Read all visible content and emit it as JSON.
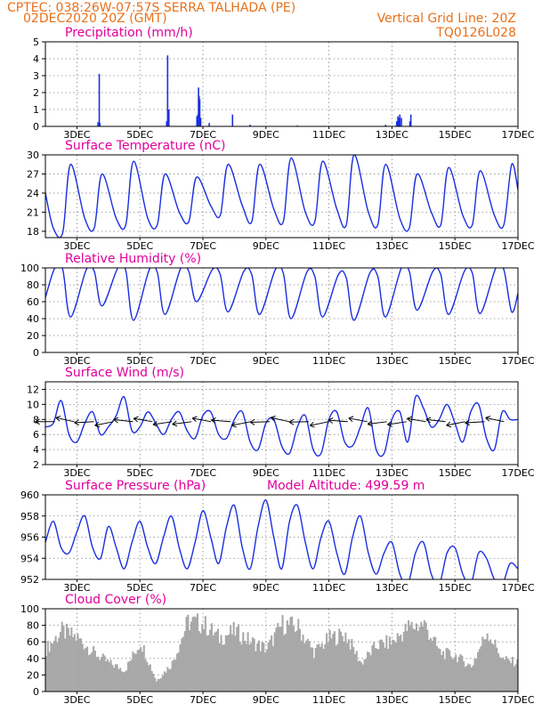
{
  "header": {
    "line1_left": "CPTEC:   038:26W-07:57S   SERRA TALHADA (PE)",
    "line2_left": "02DEC2020 20Z (GMT)",
    "line2_right": "Vertical Grid Line: 20Z",
    "line3_right": "TQ0126L028"
  },
  "colors": {
    "header": "#e8701a",
    "title": "#e0009a",
    "series": "#1a2fe0",
    "cloud": "#a8a8a8"
  },
  "chart_data": [
    {
      "id": "precipitation",
      "type": "bar",
      "title": "Precipitation (mm/h)",
      "xlabel": "",
      "ylabel": "",
      "ylim": [
        0,
        5
      ],
      "yticks": [
        0,
        1,
        2,
        3,
        4,
        5
      ],
      "xlim": [
        0,
        15
      ],
      "grid": true,
      "x_ticks": [
        {
          "x": 1,
          "label": "3DEC"
        },
        {
          "x": 3,
          "label": "5DEC"
        },
        {
          "x": 5,
          "label": "7DEC"
        },
        {
          "x": 7,
          "label": "9DEC"
        },
        {
          "x": 9,
          "label": "11DEC"
        },
        {
          "x": 11,
          "label": "13DEC"
        },
        {
          "x": 13,
          "label": "15DEC"
        },
        {
          "x": 15,
          "label": "17DEC"
        }
      ],
      "x": [
        1.67,
        1.71,
        1.73,
        3.85,
        3.88,
        3.92,
        4.81,
        4.84,
        4.86,
        4.88,
        4.9,
        4.93,
        5.2,
        5.94,
        6.5,
        8.0,
        10.8,
        11.15,
        11.19,
        11.22,
        11.25,
        11.3,
        11.57,
        11.6
      ],
      "values": [
        0.25,
        3.1,
        0.2,
        0.3,
        4.2,
        1.0,
        0.6,
        0.7,
        2.3,
        1.8,
        1.6,
        0.5,
        0.2,
        0.7,
        0.1,
        0.05,
        0.1,
        0.3,
        0.6,
        0.5,
        0.7,
        0.5,
        0.3,
        0.7
      ]
    },
    {
      "id": "surface_temperature",
      "type": "line",
      "title": "Surface Temperature (nC)",
      "xlabel": "",
      "ylabel": "",
      "ylim": [
        17,
        30
      ],
      "yticks": [
        18,
        21,
        24,
        27,
        30
      ],
      "xlim": [
        0,
        15
      ],
      "grid": true,
      "x_ticks": [
        {
          "x": 1,
          "label": "3DEC"
        },
        {
          "x": 3,
          "label": "5DEC"
        },
        {
          "x": 5,
          "label": "7DEC"
        },
        {
          "x": 7,
          "label": "9DEC"
        },
        {
          "x": 9,
          "label": "11DEC"
        },
        {
          "x": 11,
          "label": "13DEC"
        },
        {
          "x": 13,
          "label": "15DEC"
        },
        {
          "x": 15,
          "label": "17DEC"
        }
      ],
      "x": [
        0,
        0.25,
        0.55,
        0.8,
        1.25,
        1.55,
        1.8,
        2.25,
        2.55,
        2.8,
        3.25,
        3.55,
        3.8,
        4.25,
        4.55,
        4.8,
        5.25,
        5.55,
        5.8,
        6.25,
        6.55,
        6.8,
        7.25,
        7.55,
        7.8,
        8.25,
        8.55,
        8.8,
        9.25,
        9.55,
        9.8,
        10.25,
        10.55,
        10.8,
        11.25,
        11.55,
        11.8,
        12.25,
        12.55,
        12.8,
        13.25,
        13.55,
        13.8,
        14.25,
        14.55,
        14.8,
        15
      ],
      "values": [
        24,
        18.5,
        17.8,
        28.5,
        20,
        18.5,
        27,
        20,
        19,
        29,
        20,
        19,
        27,
        21,
        19.5,
        26.5,
        22,
        20.5,
        28.5,
        22,
        19.5,
        28.5,
        21.5,
        19.5,
        29.5,
        21,
        19.5,
        29,
        21.5,
        19,
        30,
        21,
        19,
        28.5,
        20,
        18.5,
        27,
        21,
        19,
        28,
        20.5,
        19,
        27.5,
        20.5,
        19,
        28.5,
        24.5
      ]
    },
    {
      "id": "relative_humidity",
      "type": "line",
      "title": "Relative Humidity (%)",
      "xlabel": "",
      "ylabel": "",
      "ylim": [
        0,
        100
      ],
      "yticks": [
        0,
        20,
        40,
        60,
        80,
        100
      ],
      "xlim": [
        0,
        15
      ],
      "grid": true,
      "x_ticks": [
        {
          "x": 1,
          "label": "3DEC"
        },
        {
          "x": 3,
          "label": "5DEC"
        },
        {
          "x": 5,
          "label": "7DEC"
        },
        {
          "x": 7,
          "label": "9DEC"
        },
        {
          "x": 9,
          "label": "11DEC"
        },
        {
          "x": 11,
          "label": "13DEC"
        },
        {
          "x": 13,
          "label": "15DEC"
        },
        {
          "x": 15,
          "label": "17DEC"
        }
      ],
      "x": [
        0,
        0.3,
        0.55,
        0.8,
        1.3,
        1.55,
        1.8,
        2.3,
        2.55,
        2.8,
        3.3,
        3.55,
        3.8,
        4.3,
        4.55,
        4.8,
        5.3,
        5.55,
        5.8,
        6.3,
        6.55,
        6.8,
        7.3,
        7.55,
        7.8,
        8.3,
        8.55,
        8.8,
        9.3,
        9.55,
        9.8,
        10.3,
        10.55,
        10.8,
        11.3,
        11.55,
        11.8,
        12.3,
        12.55,
        12.8,
        13.3,
        13.55,
        13.8,
        14.3,
        14.55,
        14.8,
        15
      ],
      "values": [
        65,
        100,
        98,
        42,
        98,
        96,
        55,
        100,
        97,
        38,
        98,
        95,
        45,
        100,
        96,
        60,
        98,
        92,
        48,
        96,
        92,
        45,
        98,
        94,
        40,
        95,
        90,
        42,
        92,
        88,
        38,
        94,
        90,
        42,
        100,
        96,
        50,
        96,
        92,
        45,
        96,
        94,
        46,
        100,
        98,
        48,
        70
      ]
    },
    {
      "id": "surface_wind",
      "type": "line",
      "title": "Surface Wind (m/s)",
      "xlabel": "",
      "ylabel": "",
      "ylim": [
        2,
        13
      ],
      "yticks": [
        2,
        4,
        6,
        8,
        10,
        12
      ],
      "xlim": [
        0,
        15
      ],
      "grid": true,
      "x_ticks": [
        {
          "x": 1,
          "label": "3DEC"
        },
        {
          "x": 3,
          "label": "5DEC"
        },
        {
          "x": 5,
          "label": "7DEC"
        },
        {
          "x": 7,
          "label": "9DEC"
        },
        {
          "x": 9,
          "label": "11DEC"
        },
        {
          "x": 11,
          "label": "13DEC"
        },
        {
          "x": 13,
          "label": "15DEC"
        },
        {
          "x": 15,
          "label": "17DEC"
        }
      ],
      "x": [
        0,
        0.25,
        0.5,
        0.75,
        1.0,
        1.25,
        1.5,
        1.75,
        2.0,
        2.25,
        2.5,
        2.75,
        3.0,
        3.25,
        3.5,
        3.75,
        4.0,
        4.25,
        4.5,
        4.75,
        5.0,
        5.25,
        5.5,
        5.75,
        6.0,
        6.25,
        6.5,
        6.75,
        7.0,
        7.25,
        7.5,
        7.75,
        8.0,
        8.25,
        8.5,
        8.75,
        9.0,
        9.25,
        9.5,
        9.75,
        10.0,
        10.25,
        10.5,
        10.75,
        11.0,
        11.25,
        11.5,
        11.75,
        12.0,
        12.25,
        12.5,
        12.75,
        13.0,
        13.25,
        13.5,
        13.75,
        14.0,
        14.25,
        14.5,
        14.75,
        15.0
      ],
      "values": [
        7,
        7.5,
        10.5,
        6,
        5,
        7.5,
        9,
        6,
        7,
        8.5,
        11,
        6.5,
        7,
        9,
        7.5,
        6,
        8,
        9,
        6.5,
        5.5,
        8.5,
        9,
        6,
        5.5,
        8,
        9,
        5,
        4,
        7.5,
        8,
        4.5,
        3.5,
        7,
        8.5,
        4,
        3.5,
        8,
        9,
        5,
        4.5,
        7,
        9.5,
        4,
        3.5,
        8,
        9,
        5,
        11,
        9.5,
        7,
        8,
        10,
        7.5,
        5,
        9,
        10,
        5.5,
        4,
        9,
        8,
        8
      ]
    },
    {
      "id": "surface_pressure",
      "type": "line",
      "title": "Surface Pressure (hPa)",
      "annotation": "Model Altitude: 499.59  m",
      "xlabel": "",
      "ylabel": "",
      "ylim": [
        952,
        960
      ],
      "yticks": [
        952,
        954,
        956,
        958,
        960
      ],
      "xlim": [
        0,
        15
      ],
      "grid": true,
      "x_ticks": [
        {
          "x": 1,
          "label": "3DEC"
        },
        {
          "x": 3,
          "label": "5DEC"
        },
        {
          "x": 5,
          "label": "7DEC"
        },
        {
          "x": 7,
          "label": "9DEC"
        },
        {
          "x": 9,
          "label": "11DEC"
        },
        {
          "x": 11,
          "label": "13DEC"
        },
        {
          "x": 13,
          "label": "15DEC"
        },
        {
          "x": 15,
          "label": "17DEC"
        }
      ],
      "x": [
        0,
        0.25,
        0.5,
        0.75,
        1.0,
        1.25,
        1.5,
        1.75,
        2.0,
        2.25,
        2.5,
        2.75,
        3.0,
        3.25,
        3.5,
        3.75,
        4.0,
        4.25,
        4.5,
        4.75,
        5.0,
        5.25,
        5.5,
        5.75,
        6.0,
        6.25,
        6.5,
        6.75,
        7.0,
        7.25,
        7.5,
        7.75,
        8.0,
        8.25,
        8.5,
        8.75,
        9.0,
        9.25,
        9.5,
        9.75,
        10.0,
        10.25,
        10.5,
        10.75,
        11.0,
        11.25,
        11.5,
        11.75,
        12.0,
        12.25,
        12.5,
        12.75,
        13.0,
        13.25,
        13.5,
        13.75,
        14.0,
        14.25,
        14.5,
        14.75,
        15.0
      ],
      "values": [
        955.5,
        957.5,
        955,
        954.5,
        956.5,
        958,
        955,
        954,
        957,
        955,
        953,
        955.5,
        957.5,
        955,
        953.5,
        956,
        958,
        955,
        953,
        955.5,
        958.5,
        956,
        953.5,
        957,
        959,
        955,
        953,
        957,
        959.5,
        956,
        953,
        957.5,
        959,
        955.5,
        953,
        956,
        957.5,
        954.5,
        952.5,
        956,
        958,
        954.5,
        952.5,
        954.5,
        955.5,
        952.5,
        951.5,
        954.5,
        955.5,
        952.5,
        951.5,
        954.5,
        955,
        952.5,
        951.5,
        954.5,
        954,
        952,
        951.5,
        953.5,
        953
      ]
    },
    {
      "id": "cloud_cover",
      "type": "area",
      "title": "Cloud Cover (%)",
      "xlabel": "",
      "ylabel": "",
      "ylim": [
        0,
        100
      ],
      "yticks": [
        0,
        20,
        40,
        60,
        80,
        100
      ],
      "xlim": [
        0,
        15
      ],
      "grid": true,
      "x_ticks": [
        {
          "x": 1,
          "label": "3DEC"
        },
        {
          "x": 3,
          "label": "5DEC"
        },
        {
          "x": 5,
          "label": "7DEC"
        },
        {
          "x": 7,
          "label": "9DEC"
        },
        {
          "x": 9,
          "label": "11DEC"
        },
        {
          "x": 11,
          "label": "13DEC"
        },
        {
          "x": 13,
          "label": "15DEC"
        },
        {
          "x": 15,
          "label": "17DEC"
        }
      ],
      "x": [
        0,
        0.5,
        1.0,
        1.5,
        2.0,
        2.5,
        3.0,
        3.5,
        4.0,
        4.5,
        5.0,
        5.5,
        6.0,
        6.5,
        7.0,
        7.5,
        8.0,
        8.5,
        9.0,
        9.5,
        10.0,
        10.5,
        11.0,
        11.5,
        12.0,
        12.5,
        13.0,
        13.5,
        14.0,
        14.5,
        15.0
      ],
      "values": [
        60,
        85,
        75,
        55,
        40,
        30,
        70,
        15,
        40,
        98,
        95,
        75,
        85,
        70,
        60,
        95,
        90,
        55,
        75,
        80,
        40,
        65,
        70,
        90,
        95,
        55,
        50,
        35,
        85,
        45,
        40
      ]
    }
  ]
}
